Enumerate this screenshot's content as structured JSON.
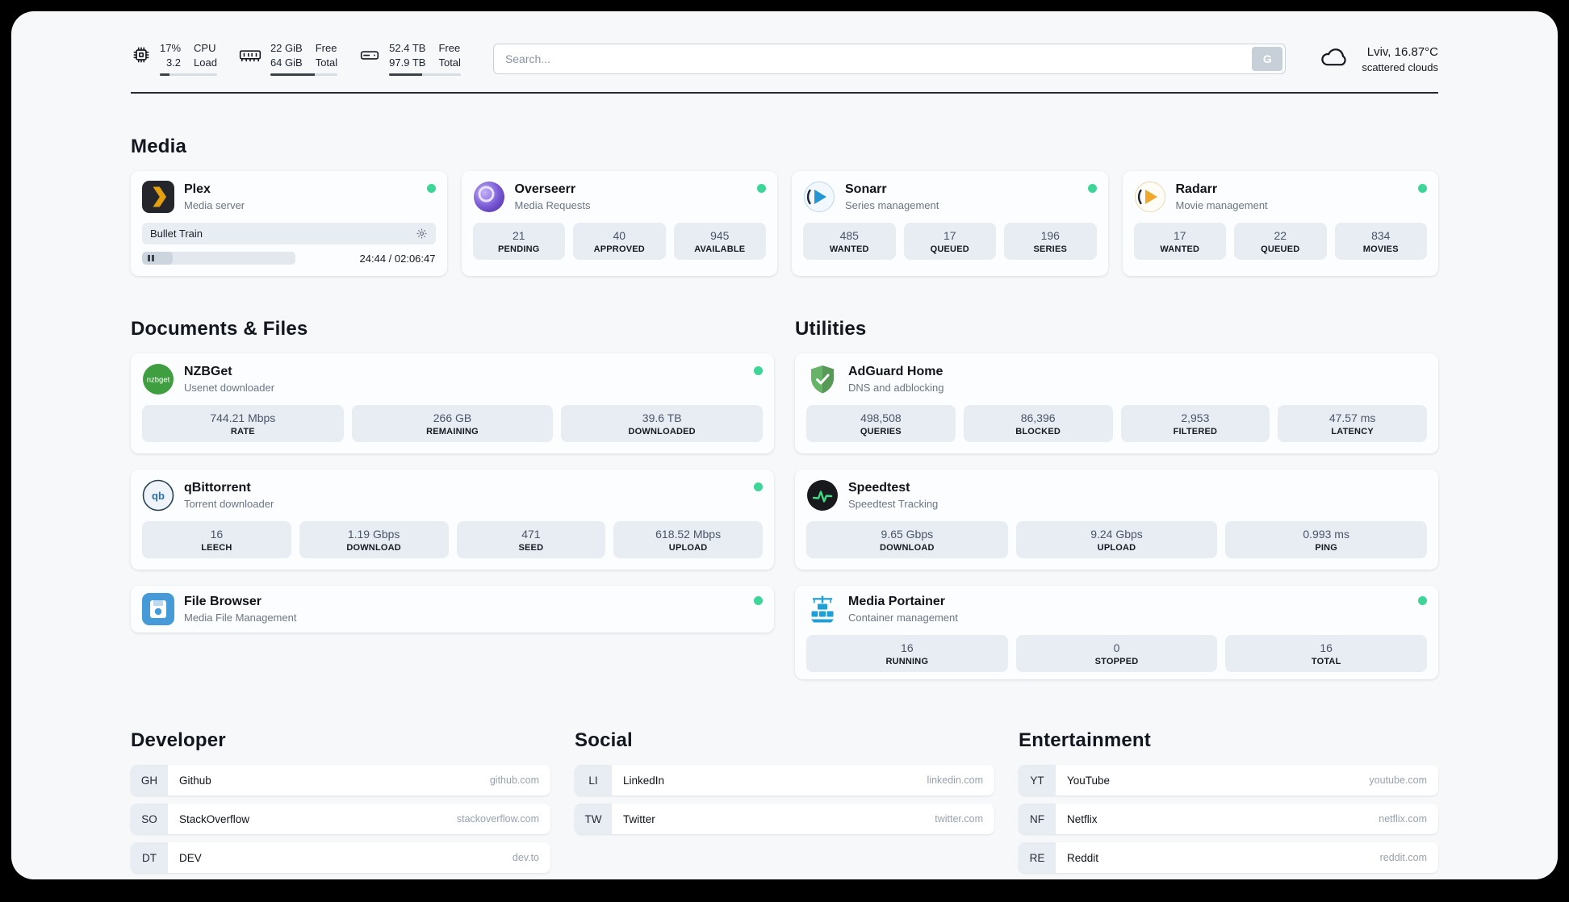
{
  "header": {
    "cpu": {
      "value1": "17%",
      "value2": "3.2",
      "label1": "CPU",
      "label2": "Load",
      "bar": "17%"
    },
    "ram": {
      "value1": "22 GiB",
      "value2": "64 GiB",
      "label1": "Free",
      "label2": "Total",
      "bar": "66%"
    },
    "disk": {
      "value1": "52.4 TB",
      "value2": "97.9 TB",
      "label1": "Free",
      "label2": "Total",
      "bar": "46%"
    },
    "search": {
      "placeholder": "Search...",
      "button_label": "G"
    },
    "weather": {
      "location": "Lviv, 16.87°C",
      "condition": "scattered clouds"
    }
  },
  "sections": {
    "media": {
      "title": "Media",
      "plex": {
        "name": "Plex",
        "desc": "Media server",
        "now_playing": "Bullet Train",
        "time": "24:44 / 02:06:47",
        "progress": "20%"
      },
      "overseerr": {
        "name": "Overseerr",
        "desc": "Media Requests",
        "stats": [
          {
            "value": "21",
            "label": "PENDING"
          },
          {
            "value": "40",
            "label": "APPROVED"
          },
          {
            "value": "945",
            "label": "AVAILABLE"
          }
        ]
      },
      "sonarr": {
        "name": "Sonarr",
        "desc": "Series management",
        "stats": [
          {
            "value": "485",
            "label": "WANTED"
          },
          {
            "value": "17",
            "label": "QUEUED"
          },
          {
            "value": "196",
            "label": "SERIES"
          }
        ]
      },
      "radarr": {
        "name": "Radarr",
        "desc": "Movie management",
        "stats": [
          {
            "value": "17",
            "label": "WANTED"
          },
          {
            "value": "22",
            "label": "QUEUED"
          },
          {
            "value": "834",
            "label": "MOVIES"
          }
        ]
      }
    },
    "documents": {
      "title": "Documents & Files",
      "nzbget": {
        "name": "NZBGet",
        "desc": "Usenet downloader",
        "stats": [
          {
            "value": "744.21 Mbps",
            "label": "RATE"
          },
          {
            "value": "266 GB",
            "label": "REMAINING"
          },
          {
            "value": "39.6 TB",
            "label": "DOWNLOADED"
          }
        ]
      },
      "qbittorrent": {
        "name": "qBittorrent",
        "desc": "Torrent downloader",
        "stats": [
          {
            "value": "16",
            "label": "LEECH"
          },
          {
            "value": "1.19 Gbps",
            "label": "DOWNLOAD"
          },
          {
            "value": "471",
            "label": "SEED"
          },
          {
            "value": "618.52 Mbps",
            "label": "UPLOAD"
          }
        ]
      },
      "filebrowser": {
        "name": "File Browser",
        "desc": "Media File Management"
      }
    },
    "utilities": {
      "title": "Utilities",
      "adguard": {
        "name": "AdGuard Home",
        "desc": "DNS and adblocking",
        "stats": [
          {
            "value": "498,508",
            "label": "QUERIES"
          },
          {
            "value": "86,396",
            "label": "BLOCKED"
          },
          {
            "value": "2,953",
            "label": "FILTERED"
          },
          {
            "value": "47.57 ms",
            "label": "LATENCY"
          }
        ]
      },
      "speedtest": {
        "name": "Speedtest",
        "desc": "Speedtest Tracking",
        "stats": [
          {
            "value": "9.65 Gbps",
            "label": "DOWNLOAD"
          },
          {
            "value": "9.24 Gbps",
            "label": "UPLOAD"
          },
          {
            "value": "0.993 ms",
            "label": "PING"
          }
        ]
      },
      "portainer": {
        "name": "Media Portainer",
        "desc": "Container management",
        "stats": [
          {
            "value": "16",
            "label": "RUNNING"
          },
          {
            "value": "0",
            "label": "STOPPED"
          },
          {
            "value": "16",
            "label": "TOTAL"
          }
        ]
      }
    }
  },
  "bookmarks": {
    "developer": {
      "title": "Developer",
      "items": [
        {
          "abbr": "GH",
          "name": "Github",
          "url": "github.com"
        },
        {
          "abbr": "SO",
          "name": "StackOverflow",
          "url": "stackoverflow.com"
        },
        {
          "abbr": "DT",
          "name": "DEV",
          "url": "dev.to"
        }
      ]
    },
    "social": {
      "title": "Social",
      "items": [
        {
          "abbr": "LI",
          "name": "LinkedIn",
          "url": "linkedin.com"
        },
        {
          "abbr": "TW",
          "name": "Twitter",
          "url": "twitter.com"
        }
      ]
    },
    "entertainment": {
      "title": "Entertainment",
      "items": [
        {
          "abbr": "YT",
          "name": "YouTube",
          "url": "youtube.com"
        },
        {
          "abbr": "NF",
          "name": "Netflix",
          "url": "netflix.com"
        },
        {
          "abbr": "RE",
          "name": "Reddit",
          "url": "reddit.com"
        }
      ]
    }
  },
  "icons": {
    "cpu": "cpu-chip-icon",
    "ram": "memory-icon",
    "disk": "hard-drive-icon",
    "weather": "cloud-icon",
    "plex": "plex-chevron-icon",
    "overseerr": "overseerr-orb-icon",
    "sonarr": "sonarr-play-icon",
    "radarr": "radarr-play-icon",
    "nzbget": "nzbget-badge-icon",
    "qbittorrent": "qbittorrent-badge-icon",
    "filebrowser": "filebrowser-disk-icon",
    "adguard": "adguard-shield-icon",
    "speedtest": "speedtest-pulse-icon",
    "portainer": "portainer-crane-icon",
    "settings": "gear-icon",
    "pause": "pause-icon"
  },
  "colors": {
    "status_online": "#3ed598",
    "plex_accent": "#e5a00d",
    "adguard_green": "#67b368",
    "speedtest_green": "#3ddc84",
    "portainer_blue": "#1e9fd8",
    "sonarr_blue": "#2596d1",
    "radarr_orange": "#f0a72b",
    "nzbget_green": "#3f9e3f",
    "page_bg": "#f6f8fa",
    "stat_bg": "#e8edf3"
  }
}
